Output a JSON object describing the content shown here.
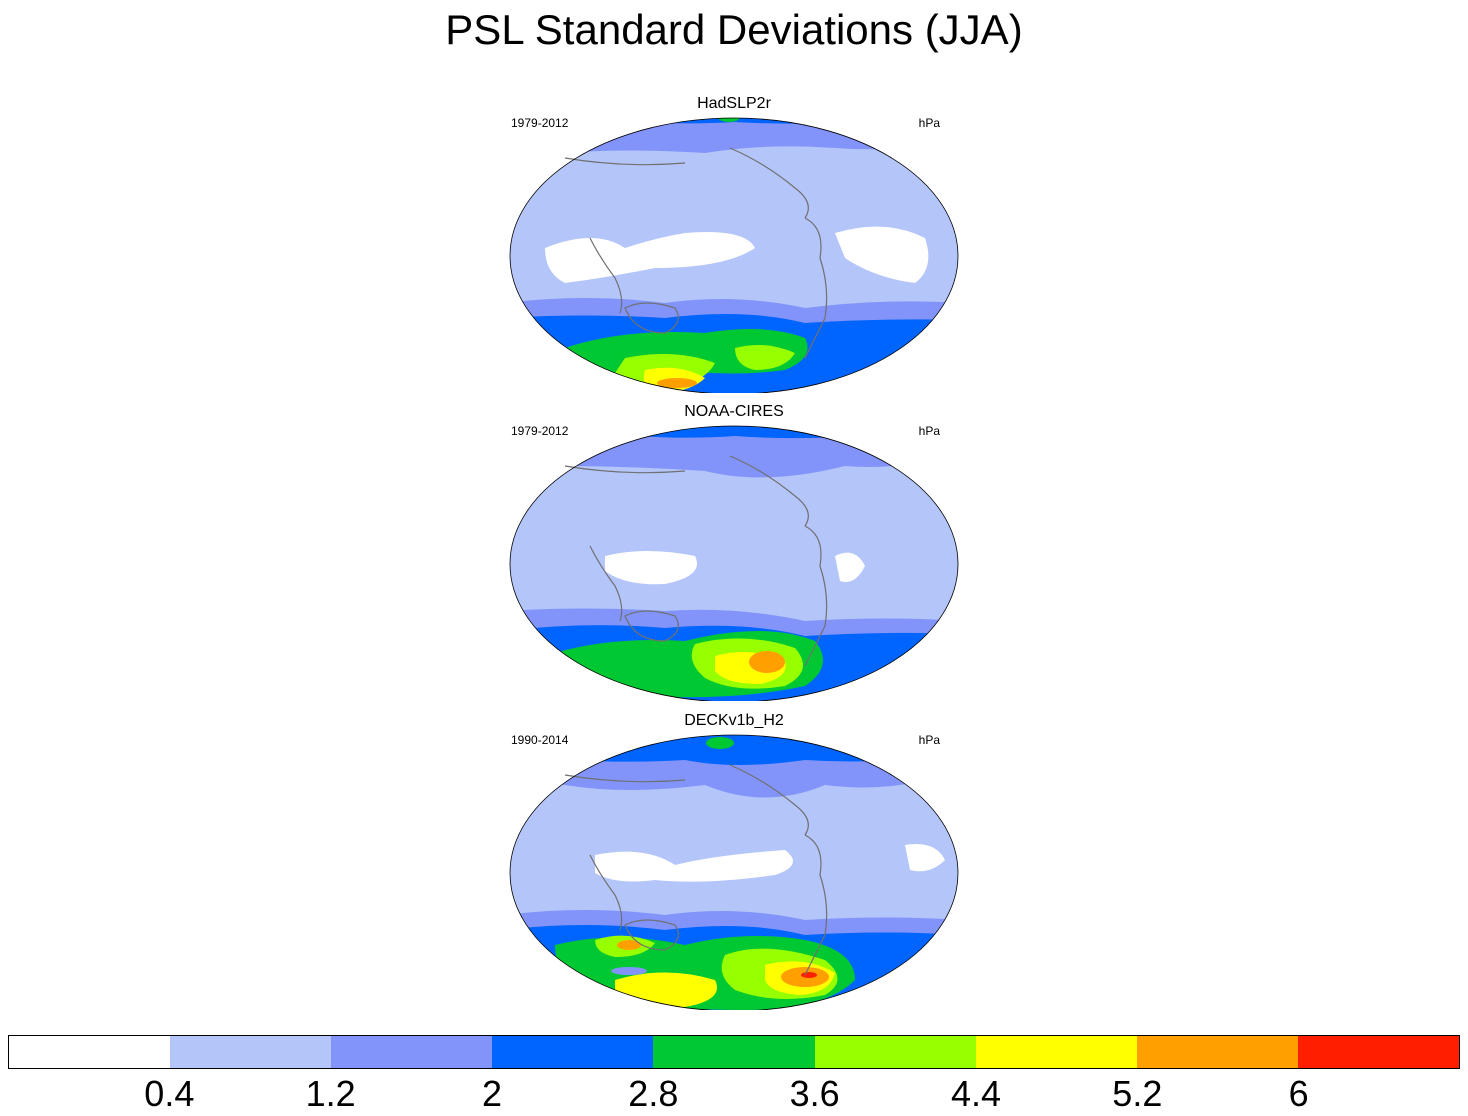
{
  "title": "PSL Standard Deviations (JJA)",
  "panels": [
    {
      "name": "HadSLP2r",
      "period": "1979-2012",
      "units": "hPa"
    },
    {
      "name": "NOAA-CIRES",
      "period": "1979-2012",
      "units": "hPa"
    },
    {
      "name": "DECKv1b_H2",
      "period": "1990-2014",
      "units": "hPa"
    }
  ],
  "colorbar": {
    "colors": [
      "#ffffff",
      "#b4c5fa",
      "#8294fa",
      "#0064ff",
      "#00c832",
      "#96ff00",
      "#ffff00",
      "#ffa000",
      "#ff1e00"
    ],
    "labels": [
      "0.4",
      "1.2",
      "2",
      "2.8",
      "3.6",
      "4.4",
      "5.2",
      "6"
    ]
  }
}
